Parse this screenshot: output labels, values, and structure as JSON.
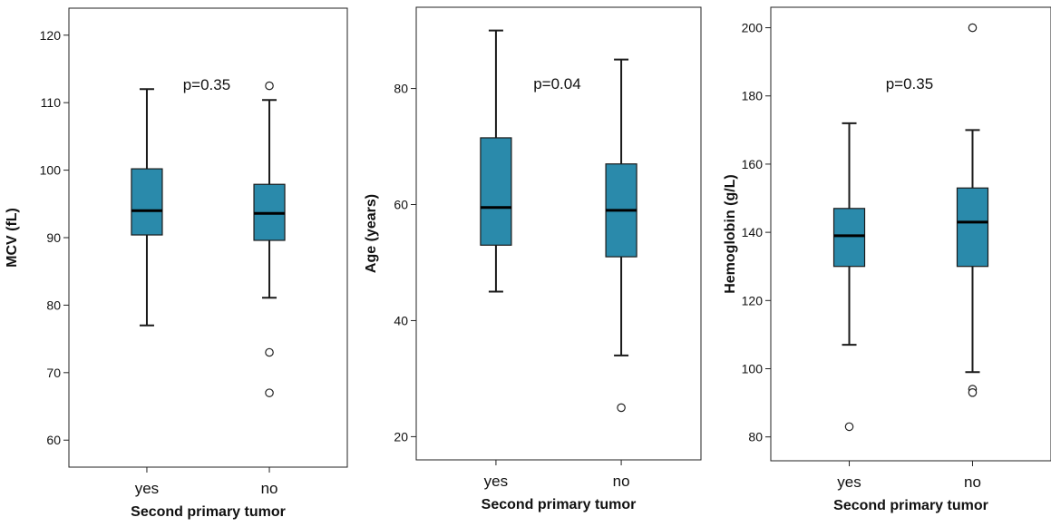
{
  "colors": {
    "box_fill": "#2a8aab",
    "box_stroke": "#1a1a1a",
    "outlier_fill": "#ffffff"
  },
  "chart_data": [
    {
      "type": "box",
      "xlabel": "Second primary tumor",
      "ylabel": "MCV (fL)",
      "ylim": [
        56,
        124
      ],
      "yticks": [
        60,
        70,
        80,
        90,
        100,
        110,
        120
      ],
      "categories": [
        "yes",
        "no"
      ],
      "annotation": "p=0.35",
      "boxes": [
        {
          "category": "yes",
          "whisker_low": 77,
          "q1": 90.4,
          "median": 94,
          "q3": 100.2,
          "whisker_high": 112,
          "outliers": []
        },
        {
          "category": "no",
          "whisker_low": 81.1,
          "q1": 89.6,
          "median": 93.6,
          "q3": 97.9,
          "whisker_high": 110.4,
          "outliers": [
            112.5,
            73,
            67
          ]
        }
      ]
    },
    {
      "type": "box",
      "xlabel": "Second primary tumor",
      "ylabel": "Age (years)",
      "ylim": [
        16,
        94
      ],
      "yticks": [
        20,
        40,
        60,
        80
      ],
      "categories": [
        "yes",
        "no"
      ],
      "annotation": "p=0.04",
      "boxes": [
        {
          "category": "yes",
          "whisker_low": 45,
          "q1": 53,
          "median": 59.5,
          "q3": 71.5,
          "whisker_high": 90,
          "outliers": []
        },
        {
          "category": "no",
          "whisker_low": 34,
          "q1": 51,
          "median": 59,
          "q3": 67,
          "whisker_high": 85,
          "outliers": [
            25
          ]
        }
      ]
    },
    {
      "type": "box",
      "xlabel": "Second primary tumor",
      "ylabel": "Hemoglobin (g/L)",
      "ylim": [
        73,
        206
      ],
      "yticks": [
        80,
        100,
        120,
        140,
        160,
        180,
        200
      ],
      "categories": [
        "yes",
        "no"
      ],
      "annotation": "p=0.35",
      "boxes": [
        {
          "category": "yes",
          "whisker_low": 107,
          "q1": 130,
          "median": 139,
          "q3": 147,
          "whisker_high": 172,
          "outliers": [
            83
          ]
        },
        {
          "category": "no",
          "whisker_low": 99,
          "q1": 130,
          "median": 143,
          "q3": 153,
          "whisker_high": 170,
          "outliers": [
            200,
            94,
            93
          ]
        }
      ]
    }
  ]
}
